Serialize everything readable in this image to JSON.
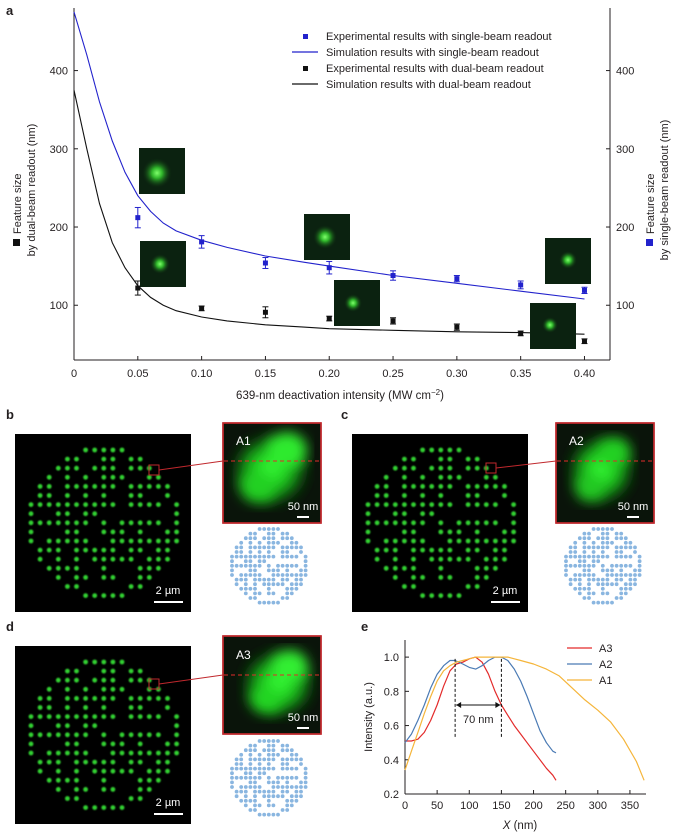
{
  "panel_labels": {
    "a": "a",
    "b": "b",
    "c": "c",
    "d": "d",
    "e": "e"
  },
  "colors": {
    "blue": "#2222cc",
    "black": "#111111",
    "red_curve": "#e32b2b",
    "blue_curve": "#4a7ab4",
    "yellow_curve": "#f5b53a",
    "box": "#c0282d",
    "dot": "#8ab6e0",
    "dot_green": "#33d133"
  },
  "chart_data": [
    {
      "type": "scatter",
      "xlabel": "639-nm deactivation intensity (MW cm",
      "xlabel_sup": "−2",
      "xlabel_close": ")",
      "ylabel_left": [
        "Feature size",
        "by dual-beam readout (nm)"
      ],
      "ylabel_right": [
        "Feature size",
        "by single-beam readout (nm)"
      ],
      "xlim": [
        0,
        0.42
      ],
      "ylim": [
        30,
        480
      ],
      "x_ticks": [
        "0",
        "0.05",
        "0.10",
        "0.15",
        "0.20",
        "0.25",
        "0.30",
        "0.35",
        "0.40"
      ],
      "y_ticks": [
        "100",
        "200",
        "300",
        "400"
      ],
      "series": [
        {
          "name": "Experimental results with single-beam readout",
          "kind": "points",
          "color": "#2222cc",
          "x": [
            0.05,
            0.1,
            0.15,
            0.2,
            0.25,
            0.3,
            0.35,
            0.4
          ],
          "y": [
            212,
            181,
            154,
            148,
            138,
            134,
            126,
            119
          ],
          "err": [
            13,
            8,
            7,
            8,
            6,
            4,
            5,
            4
          ]
        },
        {
          "name": "Simulation results with single-beam readout",
          "kind": "line",
          "color": "#2222cc",
          "x": [
            0,
            0.01,
            0.02,
            0.03,
            0.04,
            0.05,
            0.06,
            0.07,
            0.08,
            0.1,
            0.12,
            0.15,
            0.18,
            0.2,
            0.25,
            0.3,
            0.35,
            0.4
          ],
          "y": [
            475,
            420,
            360,
            310,
            270,
            240,
            220,
            205,
            195,
            183,
            174,
            163,
            155,
            150,
            138,
            128,
            118,
            108
          ]
        },
        {
          "name": "Experimental results with dual-beam readout",
          "kind": "points",
          "color": "#111111",
          "x": [
            0.05,
            0.1,
            0.15,
            0.2,
            0.25,
            0.3,
            0.35,
            0.4
          ],
          "y": [
            122,
            96,
            91,
            83,
            80,
            72,
            64,
            54
          ],
          "err": [
            9,
            3,
            7,
            3,
            4,
            4,
            3,
            3
          ]
        },
        {
          "name": "Simulation results with dual-beam readout",
          "kind": "line",
          "color": "#111111",
          "x": [
            0,
            0.01,
            0.02,
            0.03,
            0.04,
            0.05,
            0.06,
            0.07,
            0.08,
            0.1,
            0.12,
            0.15,
            0.18,
            0.2,
            0.25,
            0.3,
            0.35,
            0.4
          ],
          "y": [
            375,
            300,
            230,
            180,
            148,
            125,
            110,
            100,
            93,
            85,
            80,
            75,
            72,
            70,
            68,
            66,
            65,
            63
          ]
        }
      ]
    },
    {
      "type": "line",
      "xlabel": "X",
      "xlabel_unit": " (nm)",
      "ylabel": "Intensity (a.u.)",
      "xlim": [
        0,
        375
      ],
      "ylim": [
        0.2,
        1.1
      ],
      "x_ticks": [
        "0",
        "50",
        "100",
        "150",
        "200",
        "250",
        "300",
        "350"
      ],
      "y_ticks": [
        "0.2",
        "0.4",
        "0.6",
        "0.8",
        "1.0"
      ],
      "annotation": "70 nm",
      "annotation_x": [
        78,
        150
      ],
      "series": [
        {
          "name": "A3",
          "color": "#e32b2b",
          "x": [
            0,
            10,
            20,
            30,
            40,
            50,
            60,
            70,
            80,
            90,
            100,
            110,
            120,
            130,
            140,
            150,
            160,
            170,
            180,
            190,
            200,
            210,
            220,
            230,
            235
          ],
          "y": [
            0.51,
            0.51,
            0.52,
            0.56,
            0.63,
            0.72,
            0.83,
            0.92,
            0.96,
            0.97,
            0.99,
            1.0,
            0.97,
            0.9,
            0.8,
            0.72,
            0.66,
            0.6,
            0.55,
            0.5,
            0.45,
            0.4,
            0.35,
            0.31,
            0.28
          ]
        },
        {
          "name": "A2",
          "color": "#4a7ab4",
          "x": [
            0,
            10,
            20,
            30,
            40,
            50,
            60,
            70,
            78,
            90,
            100,
            110,
            120,
            130,
            140,
            150,
            160,
            170,
            180,
            190,
            200,
            210,
            220,
            230,
            235
          ],
          "y": [
            0.5,
            0.55,
            0.63,
            0.72,
            0.82,
            0.9,
            0.95,
            0.98,
            0.98,
            0.96,
            0.94,
            0.93,
            0.95,
            0.98,
            1.0,
            1.0,
            0.98,
            0.93,
            0.86,
            0.77,
            0.67,
            0.57,
            0.5,
            0.45,
            0.44
          ]
        },
        {
          "name": "A1",
          "color": "#f5b53a",
          "x": [
            0,
            10,
            20,
            30,
            40,
            50,
            60,
            70,
            80,
            90,
            100,
            110,
            120,
            130,
            140,
            150,
            160,
            170,
            180,
            200,
            220,
            240,
            260,
            280,
            300,
            320,
            340,
            360,
            372
          ],
          "y": [
            0.34,
            0.45,
            0.56,
            0.67,
            0.77,
            0.86,
            0.92,
            0.95,
            0.97,
            0.98,
            0.99,
            1.0,
            1.0,
            1.0,
            1.0,
            1.0,
            1.0,
            0.99,
            0.98,
            0.96,
            0.93,
            0.89,
            0.82,
            0.75,
            0.69,
            0.62,
            0.52,
            0.39,
            0.28
          ]
        }
      ]
    }
  ],
  "images": {
    "b": {
      "zoom_label": "A1",
      "zoom_scale": "50 nm",
      "scale": "2 µm"
    },
    "c": {
      "zoom_label": "A2",
      "zoom_scale": "50 nm",
      "scale": "2 µm"
    },
    "d": {
      "zoom_label": "A3",
      "zoom_scale": "50 nm",
      "scale": "2 µm"
    }
  }
}
